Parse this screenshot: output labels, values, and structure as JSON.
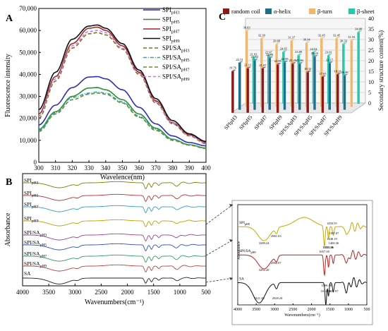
{
  "panels": {
    "A": "A",
    "B": "B",
    "C": "C"
  },
  "chart_data": [
    {
      "id": "A",
      "type": "line",
      "xlabel": "Wavelence(nm)",
      "ylabel": "Fluorescence intensity",
      "xlim": [
        300,
        400
      ],
      "ylim": [
        0,
        70000
      ],
      "xticks": [
        "300",
        "310",
        "320",
        "330",
        "340",
        "350",
        "360",
        "370",
        "380",
        "390",
        "400"
      ],
      "yticks": [
        "0",
        "10,000",
        "20,000",
        "30,000",
        "40,000",
        "50,000",
        "60,000",
        "70,000"
      ],
      "x": [
        300,
        310,
        320,
        330,
        335,
        340,
        350,
        360,
        370,
        380,
        390,
        400
      ],
      "series": [
        {
          "name": "SPIpH3",
          "legend": "SPI",
          "sub": "pH3",
          "color": "#2e2eb8",
          "dash": "",
          "values": [
            17000,
            26000,
            34000,
            38800,
            39000,
            38000,
            33000,
            25000,
            17500,
            12000,
            9000,
            7500
          ]
        },
        {
          "name": "SPIpH5",
          "legend": "SPI",
          "sub": "pH5",
          "color": "#2e8b2e",
          "dash": "",
          "values": [
            15000,
            23000,
            30000,
            33800,
            34000,
            33000,
            28500,
            22000,
            15500,
            10500,
            8000,
            6500
          ]
        },
        {
          "name": "SPIpH7",
          "legend": "SPI",
          "sub": "pH7",
          "color": "#a52a2a",
          "dash": "",
          "values": [
            22000,
            39000,
            54000,
            61000,
            61500,
            60000,
            53000,
            41000,
            28000,
            18000,
            12500,
            9000
          ]
        },
        {
          "name": "SPIpH9",
          "legend": "SPI",
          "sub": "pH9",
          "color": "#111111",
          "dash": "",
          "values": [
            24000,
            41000,
            56000,
            62000,
            62500,
            61000,
            54000,
            42000,
            29000,
            19000,
            13000,
            9500
          ]
        },
        {
          "name": "SPI/SApH3",
          "legend": "SPI/SA",
          "sub": "pH3",
          "color": "#8a6a1e",
          "dash": "5,3",
          "values": [
            20000,
            37000,
            52000,
            58500,
            59000,
            58000,
            51500,
            40000,
            27000,
            17500,
            12000,
            8500
          ]
        },
        {
          "name": "SPI/SApH5",
          "legend": "SPI/SA",
          "sub": "pH5",
          "color": "#2aa4c8",
          "dash": "5,2,1,2",
          "values": [
            14500,
            22500,
            29500,
            31500,
            32000,
            31500,
            27500,
            21000,
            15000,
            10500,
            8000,
            6500
          ]
        },
        {
          "name": "SPI/SApH7",
          "legend": "SPI/SA",
          "sub": "pH7",
          "color": "#6b8e23",
          "dash": "5,3",
          "values": [
            14000,
            22000,
            28500,
            31000,
            31500,
            31000,
            27000,
            20500,
            14500,
            10000,
            7800,
            6300
          ]
        },
        {
          "name": "SPI/SApH9",
          "legend": "SPI/SA",
          "sub": "pH9",
          "color": "#c080d8",
          "dash": "4,3",
          "values": [
            21000,
            38000,
            53000,
            59500,
            60000,
            59000,
            52000,
            40500,
            27500,
            17800,
            12200,
            8800
          ]
        }
      ]
    },
    {
      "id": "B",
      "type": "line",
      "xlabel": "Wavenumbers(cm⁻¹)",
      "ylabel": "Absorbance",
      "xlim": [
        4000,
        500
      ],
      "xticks": [
        "4000",
        "3500",
        "3000",
        "2500",
        "2000",
        "1500",
        "1000",
        "500"
      ],
      "series": [
        {
          "name": "SPIpH3",
          "legend": "SPI",
          "sub": "pH3",
          "color": "#808000"
        },
        {
          "name": "SPIpH5",
          "legend": "SPI",
          "sub": "pH5",
          "color": "#c03030"
        },
        {
          "name": "SPIpH7",
          "legend": "SPI",
          "sub": "pH7",
          "color": "#30a0c8"
        },
        {
          "name": "SPIpH9",
          "legend": "SPI",
          "sub": "pH9",
          "color": "#c0a000"
        },
        {
          "name": "SPI/SApH3",
          "legend": "SPI/SA",
          "sub": "pH3",
          "color": "#a040a0"
        },
        {
          "name": "SPI/SApH5",
          "legend": "SPI/SA",
          "sub": "pH5",
          "color": "#3050c0"
        },
        {
          "name": "SPI/SApH7",
          "legend": "SPI/SA",
          "sub": "pH7",
          "color": "#30a060"
        },
        {
          "name": "SPI/SApH9",
          "legend": "SPI/SA",
          "sub": "pH9",
          "color": "#c04040"
        },
        {
          "name": "SA",
          "legend": "SA",
          "sub": "",
          "color": "#222222"
        }
      ]
    },
    {
      "id": "B-inset",
      "type": "line",
      "xlabel": "Wavenumbers(cm⁻¹)",
      "ylabel": "Absorbance",
      "xlim": [
        4000,
        500
      ],
      "xticks": [
        "4000",
        "3500",
        "3000",
        "2500",
        "2000",
        "1500",
        "1000",
        "500"
      ],
      "series": [
        {
          "name": "SPIpH9",
          "legend": "SPI",
          "sub": "pH9",
          "color": "#c8a800"
        },
        {
          "name": "SPI/SApH9",
          "legend": "SPI/SA",
          "sub": "pH9",
          "color": "#c02020"
        },
        {
          "name": "SA",
          "legend": "SA",
          "sub": "",
          "color": "#111111"
        }
      ],
      "annotations": [
        "3289.24",
        "2961.03",
        "1657.18",
        "1553.39",
        "1535.36",
        "1450.55",
        "1397.07",
        "1448.19",
        "1400.36",
        "3292.20",
        "2960.97",
        "3421.29",
        "2928.24",
        "1612.36",
        "1599.38",
        "1411.97"
      ]
    },
    {
      "id": "C",
      "type": "bar",
      "ylabel": "Secondary structure content(%)",
      "ylim": [
        0,
        40
      ],
      "yticks": [
        "0",
        "5",
        "10",
        "15",
        "20",
        "25",
        "30",
        "35",
        "40"
      ],
      "categories": [
        "SPIpH3",
        "SPIpH5",
        "SPIpH7",
        "SPIpH9",
        "SPI/SApH3",
        "SPI/SApH5",
        "SPI/SApH7",
        "SPI/SApH9"
      ],
      "series": [
        {
          "name": "random coil",
          "color": "#8b1a1a",
          "values": [
            19.76,
            21.11,
            21.07,
            22.95,
            23.26,
            19.32,
            17.05,
            18.21
          ]
        },
        {
          "name": "α-helix",
          "color": "#1f6f8b",
          "values": [
            22.31,
            23.52,
            24.59,
            22.59,
            21.86,
            25.22,
            22.17,
            16.26
          ]
        },
        {
          "name": "β-turn",
          "color": "#f0b86e",
          "values": [
            36.03,
            32.39,
            29.68,
            31.37,
            30.34,
            32.45,
            32.45,
            31.53
          ]
        },
        {
          "name": "β-sheet",
          "color": "#2ec4a8",
          "values": [
            21.93,
            22.97,
            24.65,
            23.09,
            24.54,
            23.01,
            28.33,
            34.0
          ]
        }
      ],
      "data_labels_printed": [
        "22.31",
        "19.76",
        "23.52",
        "21.11",
        "24.59",
        "21.07",
        "22.59",
        "22.95",
        "23.26",
        "21.86",
        "25.22",
        "19.32",
        "22.17",
        "17.05",
        "16.26",
        "18.21",
        "36.03",
        "32.39",
        "29.68",
        "31.37",
        "30.34",
        "32.45",
        "32.45",
        "31.53",
        "21.93",
        "22.97",
        "24.65",
        "23.09",
        "24.54",
        "23.01",
        "28.33",
        "34.00"
      ]
    }
  ]
}
